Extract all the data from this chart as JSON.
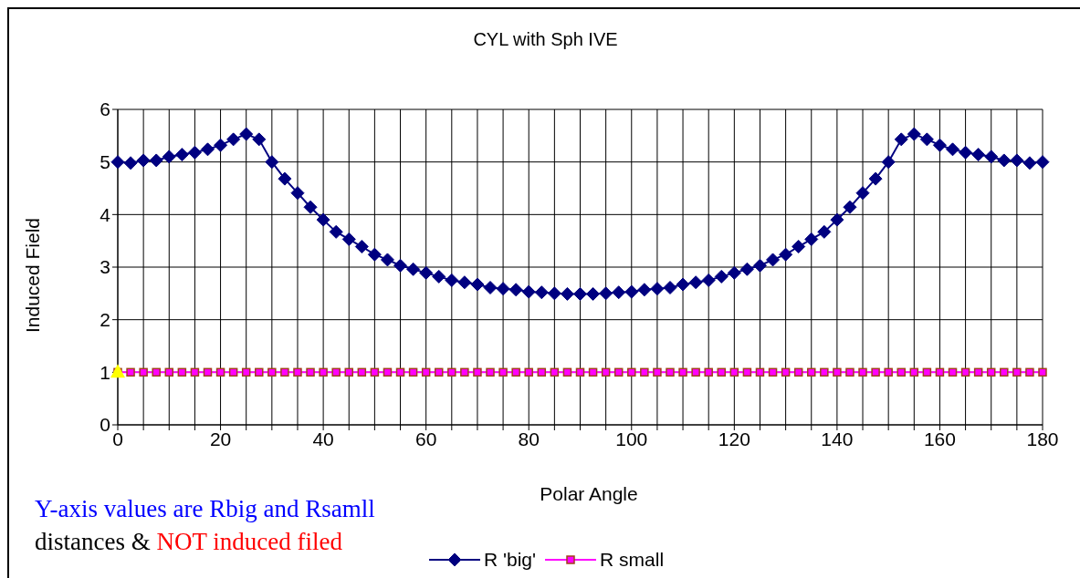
{
  "chart_data": {
    "type": "line",
    "title": "CYL with Sph IVE",
    "xlabel": "Polar Angle",
    "ylabel": "Induced Field",
    "annotations": [
      "Y-axis values are Rbig and Rsamll",
      "distances &",
      "NOT induced filed"
    ],
    "x": [
      0,
      2.5,
      5,
      7.5,
      10,
      12.5,
      15,
      17.5,
      20,
      22.5,
      25,
      27.5,
      30,
      32.5,
      35,
      37.5,
      40,
      42.5,
      45,
      47.5,
      50,
      52.5,
      55,
      57.5,
      60,
      62.5,
      65,
      67.5,
      70,
      72.5,
      75,
      77.5,
      80,
      82.5,
      85,
      87.5,
      90,
      92.5,
      95,
      97.5,
      100,
      102.5,
      105,
      107.5,
      110,
      112.5,
      115,
      117.5,
      120,
      122.5,
      125,
      127.5,
      130,
      132.5,
      135,
      137.5,
      140,
      142.5,
      145,
      147.5,
      150,
      152.5,
      155,
      157.5,
      160,
      162.5,
      165,
      167.5,
      170,
      172.5,
      175,
      177.5,
      180
    ],
    "series": [
      {
        "name": "R 'big'",
        "color": "#000080",
        "marker": "diamond",
        "values": [
          5.0,
          4.98,
          5.03,
          5.03,
          5.1,
          5.14,
          5.18,
          5.24,
          5.32,
          5.43,
          5.53,
          5.43,
          5.0,
          4.68,
          4.41,
          4.14,
          3.9,
          3.67,
          3.53,
          3.39,
          3.24,
          3.14,
          3.03,
          2.96,
          2.89,
          2.82,
          2.75,
          2.71,
          2.67,
          2.61,
          2.59,
          2.57,
          2.53,
          2.52,
          2.5,
          2.49,
          2.49,
          2.49,
          2.5,
          2.52,
          2.53,
          2.57,
          2.59,
          2.61,
          2.67,
          2.71,
          2.75,
          2.82,
          2.89,
          2.96,
          3.03,
          3.14,
          3.24,
          3.39,
          3.53,
          3.67,
          3.9,
          4.14,
          4.41,
          4.68,
          5.0,
          5.43,
          5.53,
          5.43,
          5.32,
          5.24,
          5.18,
          5.14,
          5.1,
          5.03,
          5.03,
          4.98,
          5.0
        ]
      },
      {
        "name": "R small",
        "color": "#ff00ff",
        "marker": "square",
        "values": [
          1,
          1,
          1,
          1,
          1,
          1,
          1,
          1,
          1,
          1,
          1,
          1,
          1,
          1,
          1,
          1,
          1,
          1,
          1,
          1,
          1,
          1,
          1,
          1,
          1,
          1,
          1,
          1,
          1,
          1,
          1,
          1,
          1,
          1,
          1,
          1,
          1,
          1,
          1,
          1,
          1,
          1,
          1,
          1,
          1,
          1,
          1,
          1,
          1,
          1,
          1,
          1,
          1,
          1,
          1,
          1,
          1,
          1,
          1,
          1,
          1,
          1,
          1,
          1,
          1,
          1,
          1,
          1,
          1,
          1,
          1,
          1,
          1
        ]
      },
      {
        "type": "scatter",
        "color": "#ffff00",
        "marker": "triangle",
        "x": [
          0
        ],
        "values": [
          1
        ]
      }
    ],
    "xlim": [
      0,
      180
    ],
    "xticks": [
      0,
      {
        "value": 5,
        "label": null
      },
      {
        "value": 10,
        "label": null
      },
      {
        "value": 15,
        "label": null
      },
      20,
      {
        "value": 25,
        "label": null
      },
      {
        "value": 30,
        "label": null
      },
      {
        "value": 35,
        "label": null
      },
      40,
      {
        "value": 45,
        "label": null
      },
      {
        "value": 50,
        "label": null
      },
      {
        "value": 55,
        "label": null
      },
      60,
      {
        "value": 65,
        "label": null
      },
      {
        "value": 70,
        "label": null
      },
      {
        "value": 75,
        "label": null
      },
      80,
      {
        "value": 85,
        "label": null
      },
      {
        "value": 90,
        "label": null
      },
      {
        "value": 95,
        "label": null
      },
      100,
      {
        "value": 105,
        "label": null
      },
      {
        "value": 110,
        "label": null
      },
      {
        "value": 115,
        "label": null
      },
      120,
      {
        "value": 125,
        "label": null
      },
      {
        "value": 130,
        "label": null
      },
      {
        "value": 135,
        "label": null
      },
      140,
      {
        "value": 145,
        "label": null
      },
      {
        "value": 150,
        "label": null
      },
      {
        "value": 155,
        "label": null
      },
      160,
      {
        "value": 165,
        "label": null
      },
      {
        "value": 170,
        "label": null
      },
      {
        "value": 175,
        "label": null
      },
      180
    ],
    "ylim": [
      0,
      6
    ],
    "yticks": [
      0,
      1,
      2,
      3,
      4,
      5,
      6
    ],
    "grid": true,
    "legend": "bottom",
    "line_style": "solid"
  }
}
